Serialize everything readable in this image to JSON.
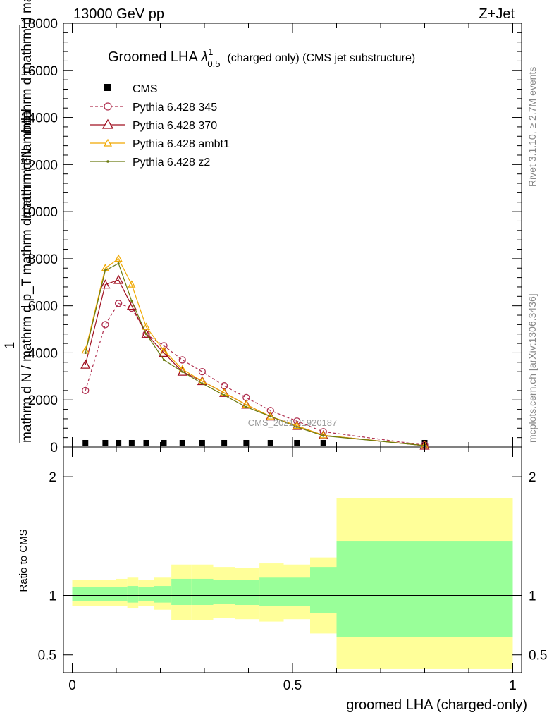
{
  "header": {
    "left": "13000 GeV pp",
    "right": "Z+Jet"
  },
  "title": {
    "main": "Groomed LHA ",
    "lambda": "λ",
    "sup": "1",
    "sub": "0.5",
    "rest": "(charged only) (CMS jet substructure)"
  },
  "side_labels": {
    "rivet": "Rivet 3.1.10, ≥ 2.7M events",
    "mcplots": "mcplots.cern.ch [arXiv:1306.3436]"
  },
  "watermark": "CMS_2021_I1920187",
  "axes": {
    "ylabel_main_num": "1",
    "ylabel_main_den": "mathrm d N / mathrm d p_T mathrm d mathrm d ... ",
    "ylabel_main_frac": "mathrm d^2 N / mathrm d p_T mathrm d lambda",
    "ylabel_main_top": "mathrm d²N",
    "ylabel_main_top2": "mathrm d p_T mathrm d lambda",
    "ylabel_ratio": "Ratio to CMS",
    "xlabel": "groomed LHA (charged-only)"
  },
  "colors": {
    "p345": "#b03050",
    "p370": "#a01020",
    "ambt1": "#f0a800",
    "z2": "#6b7a10",
    "band_outer": "#ffff99",
    "band_inner": "#99ff99"
  },
  "chart_data": {
    "type": "line",
    "x_edges": [
      0.0,
      0.05,
      0.1,
      0.125,
      0.15,
      0.185,
      0.225,
      0.27,
      0.32,
      0.37,
      0.425,
      0.48,
      0.54,
      0.6,
      1.0
    ],
    "x": [
      0.03,
      0.075,
      0.105,
      0.135,
      0.168,
      0.208,
      0.25,
      0.295,
      0.345,
      0.395,
      0.45,
      0.51,
      0.57,
      0.8
    ],
    "ylim_main": [
      0,
      18000
    ],
    "yticks_main": [
      0,
      2000,
      4000,
      6000,
      8000,
      10000,
      12000,
      14000,
      16000,
      18000
    ],
    "xticks": [
      0,
      0.5,
      1
    ],
    "xlim": [
      -0.02,
      1.02
    ],
    "ylim_ratio": [
      0.35,
      2.25
    ],
    "yticks_ratio": [
      0.5,
      1,
      2
    ],
    "legend_position": "top-left",
    "series": [
      {
        "name": "CMS",
        "marker": "square",
        "values": [
          60,
          60,
          60,
          60,
          60,
          60,
          60,
          60,
          60,
          60,
          60,
          60,
          60,
          60
        ]
      },
      {
        "name": "Pythia 6.428 345",
        "marker": "circle",
        "dashed": true,
        "values": [
          2400,
          5200,
          6100,
          5900,
          4800,
          4300,
          3700,
          3200,
          2600,
          2100,
          1550,
          1100,
          650,
          80
        ]
      },
      {
        "name": "Pythia 6.428 370",
        "marker": "triangle",
        "values": [
          3500,
          6900,
          7100,
          6000,
          4800,
          4000,
          3200,
          2800,
          2300,
          1800,
          1300,
          900,
          500,
          60
        ]
      },
      {
        "name": "Pythia 6.428 ambt1",
        "marker": "triangle-small",
        "values": [
          4100,
          7600,
          8000,
          6900,
          5100,
          4100,
          3300,
          2800,
          2300,
          1800,
          1300,
          900,
          500,
          60
        ]
      },
      {
        "name": "Pythia 6.428 z2",
        "marker": "dot",
        "values": [
          4000,
          7500,
          7800,
          6200,
          4800,
          3700,
          3200,
          2700,
          2200,
          1700,
          1300,
          850,
          480,
          60
        ]
      }
    ],
    "ratio_band": {
      "outer_low": [
        0.91,
        0.91,
        0.91,
        0.89,
        0.91,
        0.88,
        0.79,
        0.79,
        0.81,
        0.8,
        0.78,
        0.8,
        0.68,
        0.38
      ],
      "outer_high": [
        1.13,
        1.13,
        1.14,
        1.15,
        1.13,
        1.15,
        1.26,
        1.26,
        1.24,
        1.23,
        1.27,
        1.26,
        1.32,
        1.82
      ],
      "inner_low": [
        0.95,
        0.95,
        0.95,
        0.94,
        0.95,
        0.94,
        0.92,
        0.92,
        0.93,
        0.92,
        0.91,
        0.91,
        0.85,
        0.65
      ],
      "inner_high": [
        1.07,
        1.07,
        1.07,
        1.08,
        1.07,
        1.08,
        1.14,
        1.14,
        1.13,
        1.13,
        1.15,
        1.15,
        1.24,
        1.46
      ]
    }
  }
}
